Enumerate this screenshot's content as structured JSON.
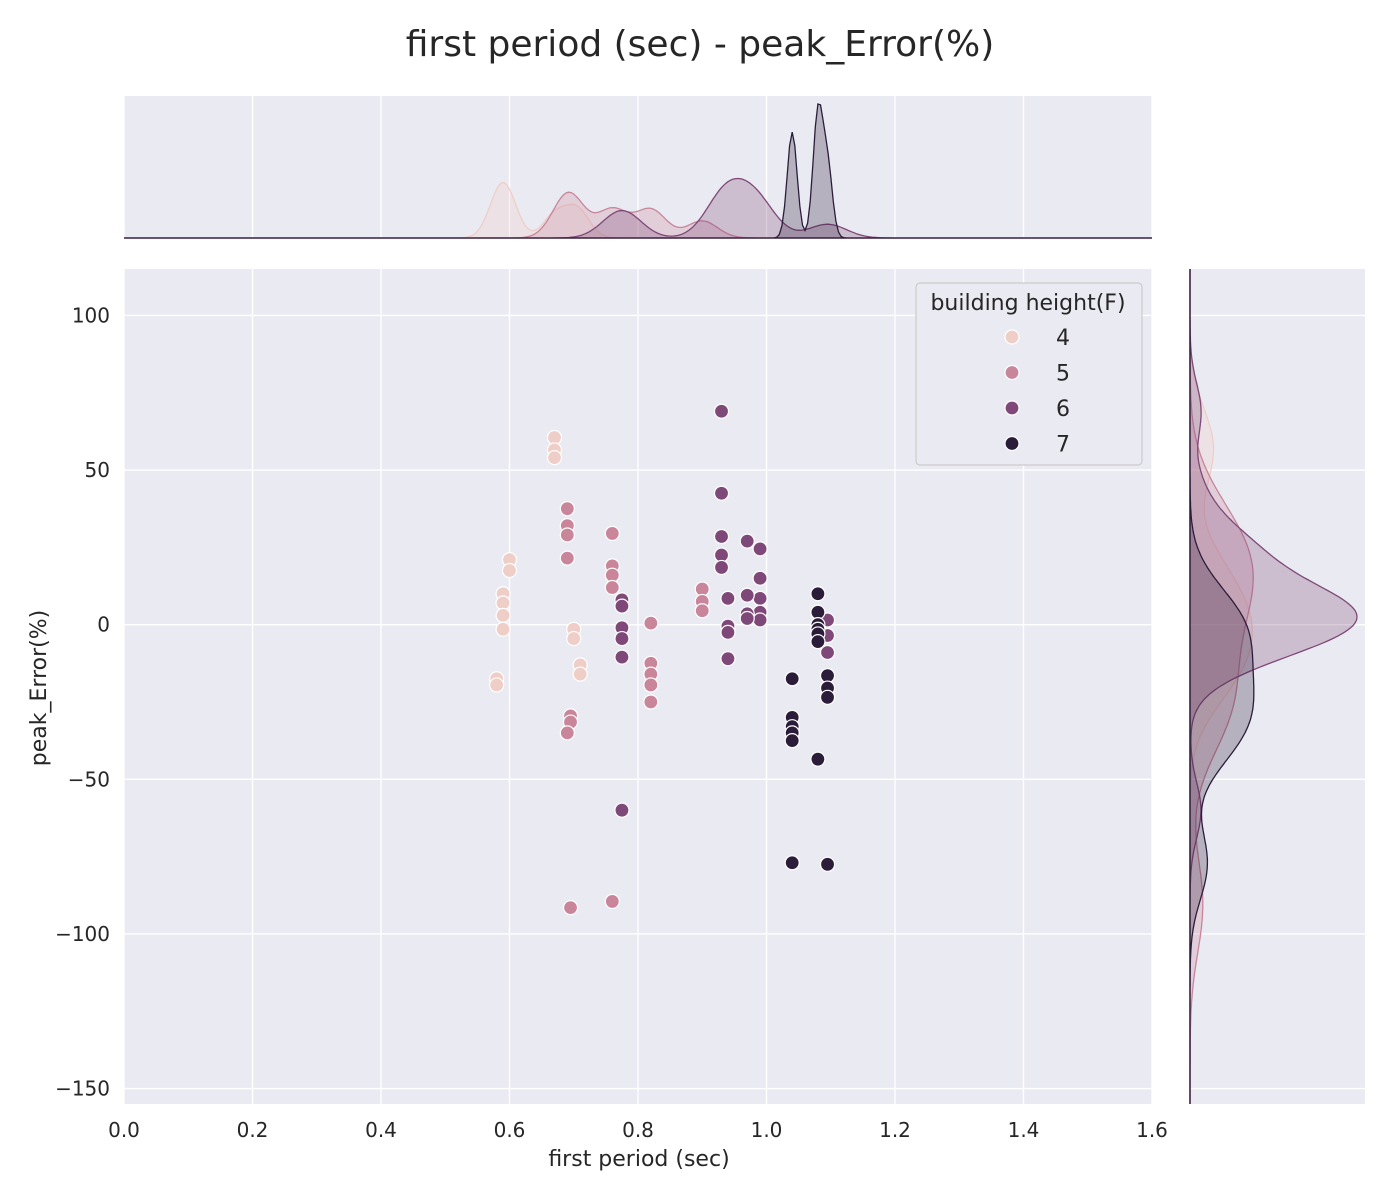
{
  "chart_data": {
    "type": "scatter",
    "title": "first period (sec) - peak_Error(%)",
    "xlabel": "first period (sec)",
    "ylabel": "peak_Error(%)",
    "xlim": [
      0.0,
      1.6
    ],
    "ylim": [
      -155,
      115
    ],
    "xticks": [
      0.0,
      0.2,
      0.4,
      0.6,
      0.8,
      1.0,
      1.2,
      1.4,
      1.6
    ],
    "xtick_labels": [
      "0.0",
      "0.2",
      "0.4",
      "0.6",
      "0.8",
      "1.0",
      "1.2",
      "1.4",
      "1.6"
    ],
    "yticks": [
      100,
      50,
      0,
      -50,
      -100,
      -150
    ],
    "ytick_labels": [
      "100",
      "50",
      "0",
      "−50",
      "−100",
      "−150"
    ],
    "grid": true,
    "marginals": "kde density curves on top (x) and right (y) per series",
    "legend": {
      "title": "building height(F)",
      "placement": "top-right"
    },
    "series": [
      {
        "name": "4",
        "color": "#efcec7",
        "points": [
          [
            0.67,
            60.5
          ],
          [
            0.67,
            56.5
          ],
          [
            0.67,
            54.0
          ],
          [
            0.6,
            21.0
          ],
          [
            0.6,
            17.5
          ],
          [
            0.59,
            10.0
          ],
          [
            0.59,
            7.0
          ],
          [
            0.59,
            3.0
          ],
          [
            0.59,
            -1.5
          ],
          [
            0.58,
            -17.5
          ],
          [
            0.58,
            -19.5
          ],
          [
            0.7,
            -1.5
          ],
          [
            0.7,
            -4.5
          ],
          [
            0.71,
            -13.0
          ],
          [
            0.71,
            -16.0
          ]
        ]
      },
      {
        "name": "5",
        "color": "#c9869a",
        "points": [
          [
            0.69,
            37.5
          ],
          [
            0.69,
            32.0
          ],
          [
            0.69,
            29.0
          ],
          [
            0.69,
            21.5
          ],
          [
            0.76,
            29.5
          ],
          [
            0.76,
            19.0
          ],
          [
            0.76,
            16.0
          ],
          [
            0.76,
            12.0
          ],
          [
            0.82,
            0.5
          ],
          [
            0.82,
            -12.5
          ],
          [
            0.82,
            -16.0
          ],
          [
            0.82,
            -19.5
          ],
          [
            0.82,
            -25.0
          ],
          [
            0.695,
            -29.5
          ],
          [
            0.695,
            -31.5
          ],
          [
            0.69,
            -35.0
          ],
          [
            0.9,
            11.5
          ],
          [
            0.9,
            7.5
          ],
          [
            0.9,
            4.5
          ],
          [
            0.695,
            -91.5
          ],
          [
            0.76,
            -89.5
          ]
        ]
      },
      {
        "name": "6",
        "color": "#7e4978",
        "points": [
          [
            0.93,
            69.0
          ],
          [
            0.93,
            42.5
          ],
          [
            0.93,
            28.5
          ],
          [
            0.93,
            22.5
          ],
          [
            0.93,
            18.5
          ],
          [
            0.97,
            27.0
          ],
          [
            0.99,
            24.5
          ],
          [
            0.99,
            15.0
          ],
          [
            0.99,
            8.5
          ],
          [
            0.99,
            4.0
          ],
          [
            0.99,
            1.5
          ],
          [
            0.97,
            9.5
          ],
          [
            0.97,
            3.5
          ],
          [
            0.97,
            2.0
          ],
          [
            0.94,
            8.5
          ],
          [
            0.94,
            -0.5
          ],
          [
            0.94,
            -2.5
          ],
          [
            0.94,
            -11.0
          ],
          [
            0.775,
            8.0
          ],
          [
            0.775,
            6.0
          ],
          [
            0.775,
            -1.0
          ],
          [
            0.775,
            -4.5
          ],
          [
            0.775,
            -10.5
          ],
          [
            1.095,
            1.5
          ],
          [
            1.095,
            -3.5
          ],
          [
            1.095,
            -9.0
          ],
          [
            0.775,
            -60.0
          ]
        ]
      },
      {
        "name": "7",
        "color": "#2b1d3a",
        "points": [
          [
            1.08,
            10.0
          ],
          [
            1.08,
            4.0
          ],
          [
            1.08,
            0.0
          ],
          [
            1.08,
            -1.5
          ],
          [
            1.08,
            -3.0
          ],
          [
            1.08,
            -5.5
          ],
          [
            1.095,
            -16.5
          ],
          [
            1.095,
            -20.5
          ],
          [
            1.095,
            -23.5
          ],
          [
            1.04,
            -17.5
          ],
          [
            1.04,
            -30.0
          ],
          [
            1.04,
            -33.0
          ],
          [
            1.04,
            -35.0
          ],
          [
            1.04,
            -37.5
          ],
          [
            1.08,
            -43.5
          ],
          [
            1.04,
            -77.0
          ],
          [
            1.095,
            -77.5
          ]
        ]
      }
    ]
  }
}
